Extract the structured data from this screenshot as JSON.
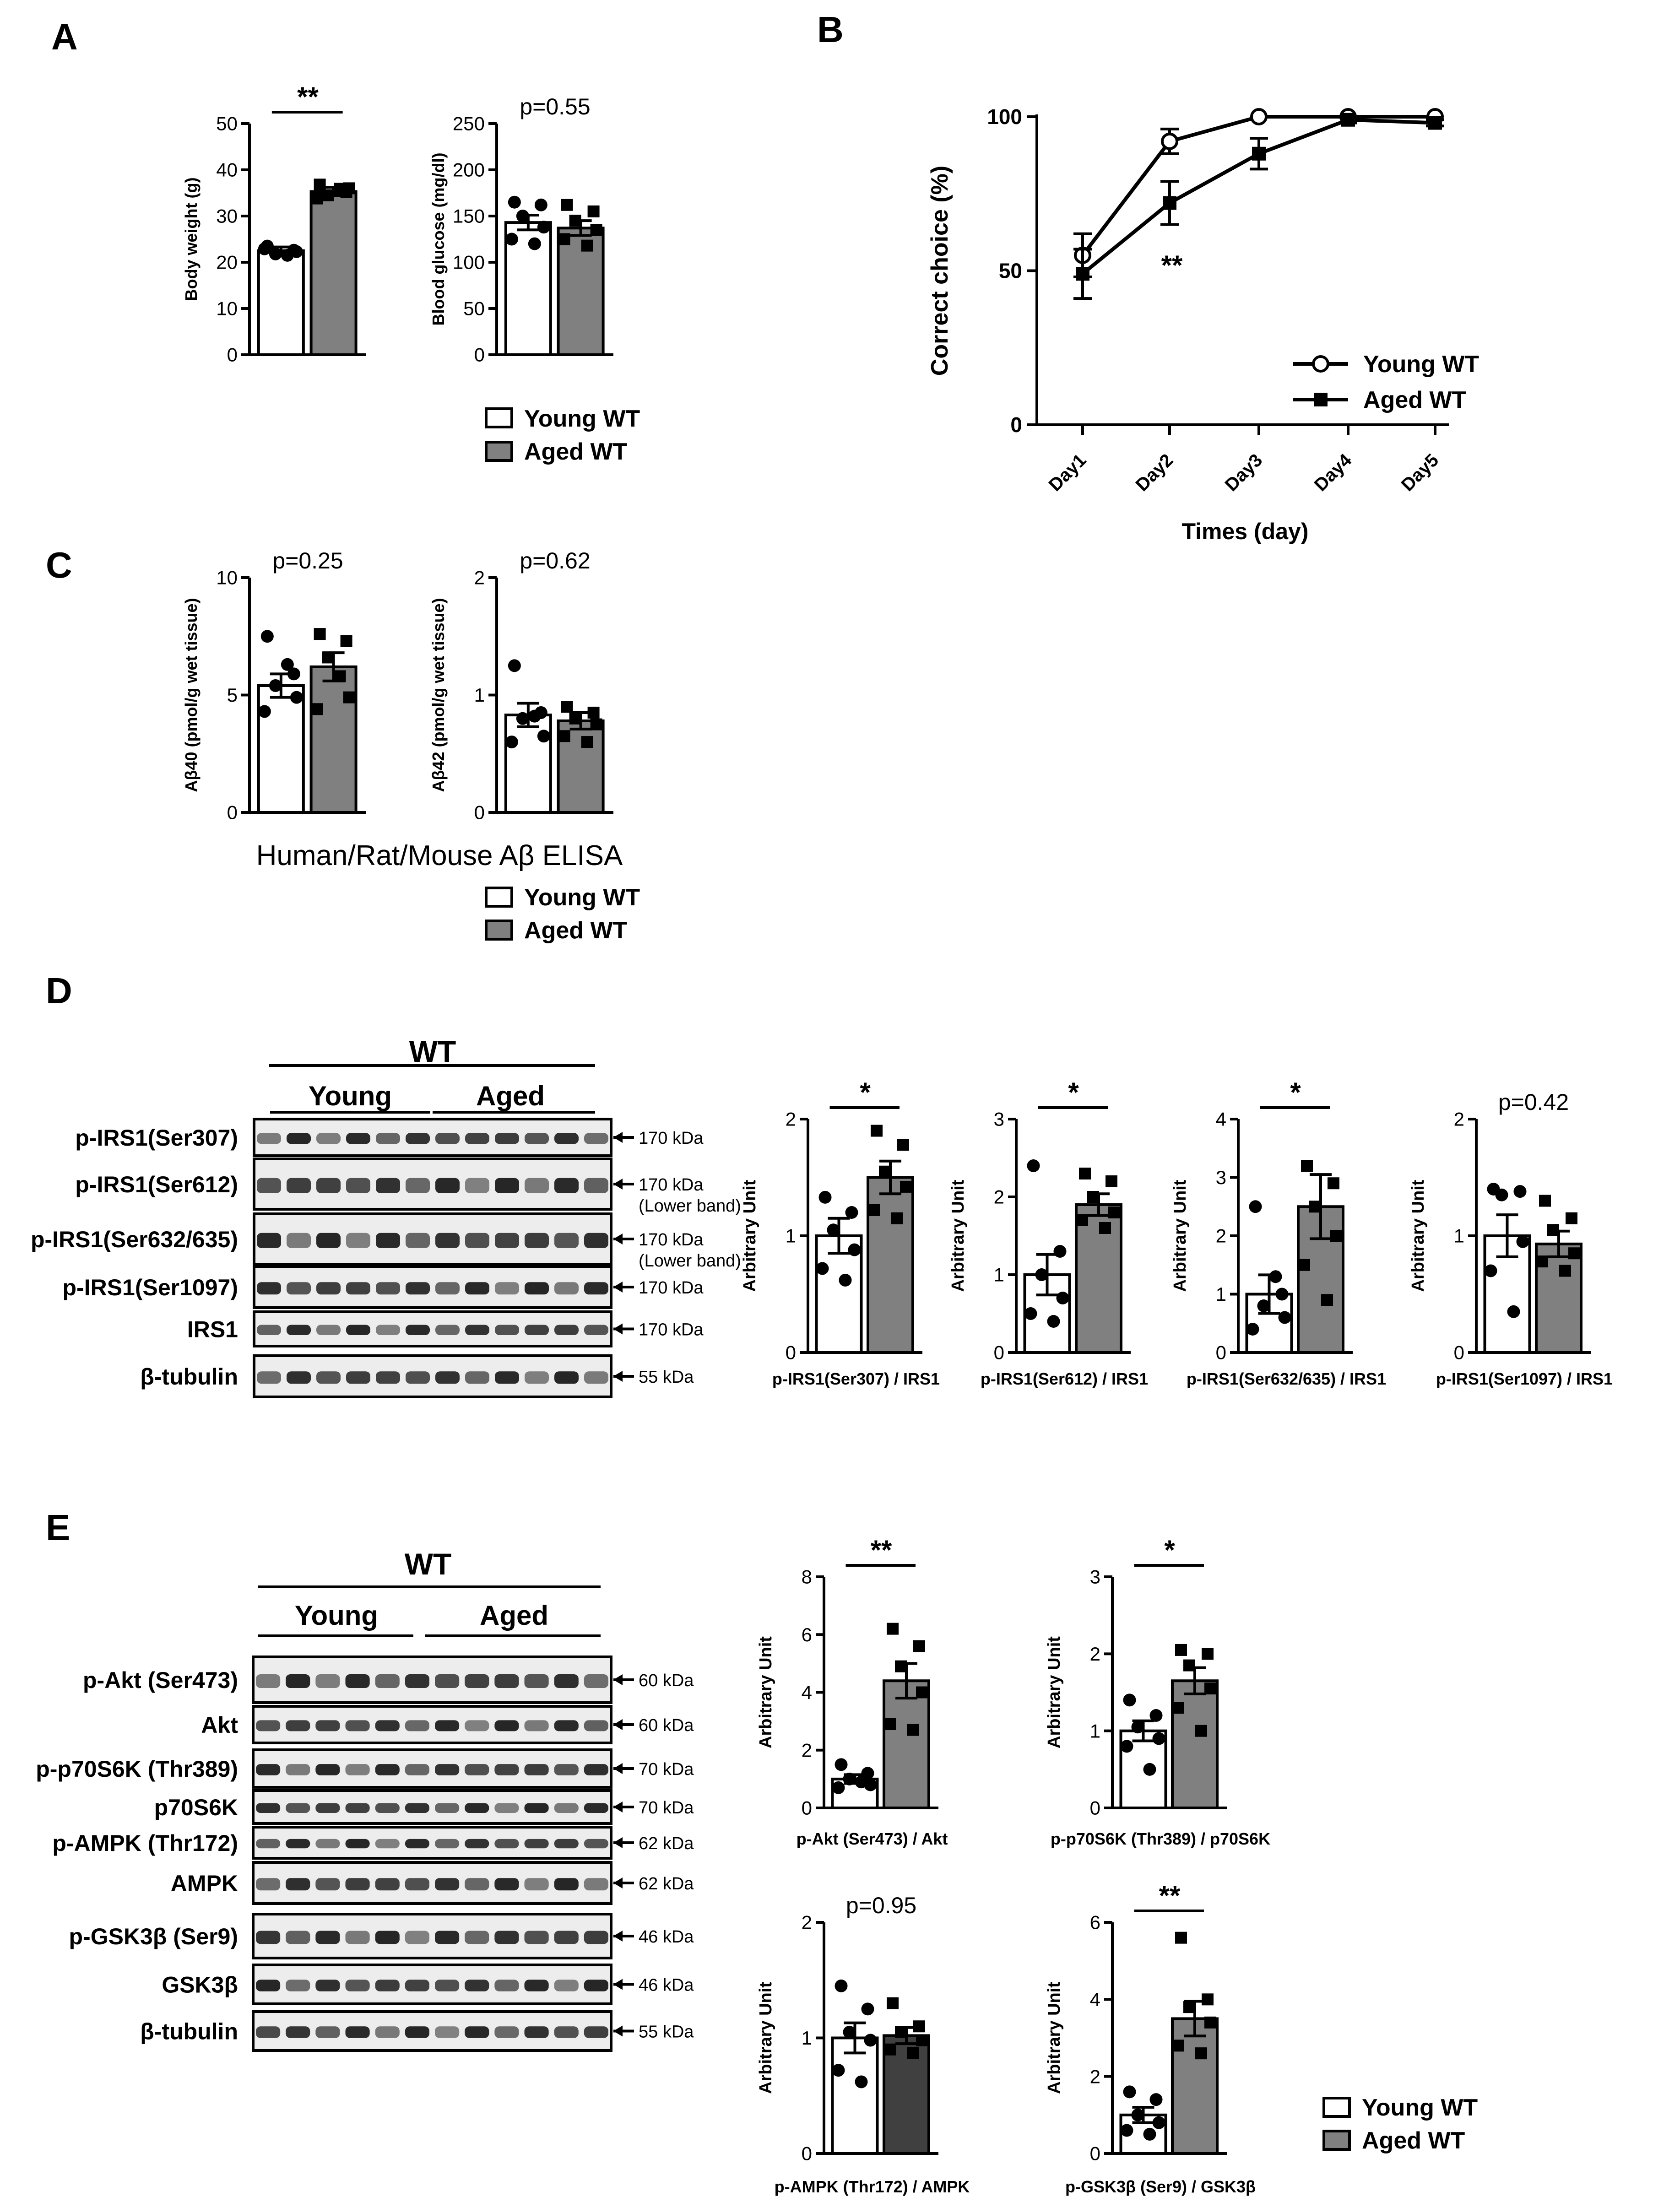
{
  "colors": {
    "young_fill": "#ffffff",
    "aged_fill": "#808080",
    "aged_fill_dark": "#404040",
    "ink": "#000000"
  },
  "panels": {
    "a": "A",
    "b": "B",
    "c": "C",
    "d": "D",
    "e": "E"
  },
  "legend": {
    "young": "Young WT",
    "aged": "Aged WT"
  },
  "elisa_caption": "Human/Rat/Mouse Aβ ELISA",
  "blot": {
    "wt": "WT",
    "young": "Young",
    "aged": "Aged",
    "d_rows": [
      {
        "label": "p-IRS1(Ser307)",
        "kda": "170 kDa",
        "note": ""
      },
      {
        "label": "p-IRS1(Ser612)",
        "kda": "170 kDa",
        "note": "(Lower band)"
      },
      {
        "label": "p-IRS1(Ser632/635)",
        "kda": "170 kDa",
        "note": "(Lower band)"
      },
      {
        "label": "p-IRS1(Ser1097)",
        "kda": "170 kDa",
        "note": ""
      },
      {
        "label": "IRS1",
        "kda": "170 kDa",
        "note": ""
      },
      {
        "label": "β-tubulin",
        "kda": "55 kDa",
        "note": ""
      }
    ],
    "e_rows": [
      {
        "label": "p-Akt (Ser473)",
        "kda": "60 kDa"
      },
      {
        "label": "Akt",
        "kda": "60 kDa"
      },
      {
        "label": "p-p70S6K (Thr389)",
        "kda": "70 kDa"
      },
      {
        "label": "p70S6K",
        "kda": "70 kDa"
      },
      {
        "label": "p-AMPK (Thr172)",
        "kda": "62 kDa"
      },
      {
        "label": "AMPK",
        "kda": "62 kDa"
      },
      {
        "label": "p-GSK3β (Ser9)",
        "kda": "46 kDa"
      },
      {
        "label": "GSK3β",
        "kda": "46 kDa"
      },
      {
        "label": "β-tubulin",
        "kda": "55 kDa"
      }
    ]
  },
  "chart_data": [
    {
      "id": "a1",
      "type": "bar",
      "ylabel": "Body weight (g)",
      "ylim": [
        0,
        50
      ],
      "yticks": [
        "0",
        "10",
        "20",
        "30",
        "40",
        "50"
      ],
      "categories": [
        "Young WT",
        "Aged WT"
      ],
      "values": [
        22.5,
        35.3
      ],
      "errors": [
        0.8,
        0.9
      ],
      "significance": "**",
      "xlabel": "",
      "points": [
        [
          23.5,
          22.6,
          21.8,
          22.3,
          22.9,
          21.5
        ],
        [
          36.8,
          35.2,
          34.5,
          36.0,
          33.8,
          35.9
        ]
      ]
    },
    {
      "id": "a2",
      "type": "bar",
      "ylabel": "Blood glucose (mg/dl)",
      "ylim": [
        0,
        250
      ],
      "yticks": [
        "0",
        "50",
        "100",
        "150",
        "200",
        "250"
      ],
      "categories": [
        "Young WT",
        "Aged WT"
      ],
      "values": [
        143,
        137
      ],
      "errors": [
        8,
        8
      ],
      "significance": "p=0.55",
      "xlabel": "",
      "points": [
        [
          165,
          162,
          150,
          138,
          125,
          120
        ],
        [
          162,
          155,
          145,
          135,
          125,
          118
        ]
      ]
    },
    {
      "id": "b",
      "type": "line",
      "ylabel": "Correct choice (%)",
      "xlabel": "Times (day)",
      "ylim": [
        0,
        100
      ],
      "yticks": [
        "0",
        "50",
        "100"
      ],
      "categories": [
        "Day1",
        "Day2",
        "Day3",
        "Day4",
        "Day5"
      ],
      "significance": "**",
      "series": [
        {
          "name": "Young WT",
          "values": [
            55,
            92,
            100,
            100,
            100
          ],
          "errors": [
            7,
            4,
            0,
            0,
            0
          ],
          "marker": "circle-open"
        },
        {
          "name": "Aged WT",
          "values": [
            49,
            72,
            88,
            99,
            98
          ],
          "errors": [
            8,
            7,
            5,
            1,
            1
          ],
          "marker": "square-filled"
        }
      ]
    },
    {
      "id": "c1",
      "type": "bar",
      "ylabel": "Aβ40 (pmol/g wet tissue)",
      "ylim": [
        0,
        10
      ],
      "yticks": [
        "0",
        "5",
        "10"
      ],
      "categories": [
        "Young WT",
        "Aged WT"
      ],
      "values": [
        5.4,
        6.2
      ],
      "errors": [
        0.5,
        0.6
      ],
      "significance": "p=0.25",
      "xlabel": "",
      "points": [
        [
          7.5,
          5.9,
          5.4,
          4.9,
          4.3,
          6.3
        ],
        [
          7.6,
          7.3,
          6.6,
          4.9,
          4.4,
          5.8
        ]
      ]
    },
    {
      "id": "c2",
      "type": "bar",
      "ylabel": "Aβ42 (pmol/g wet tissue)",
      "ylim": [
        0,
        2
      ],
      "yticks": [
        "0",
        "1",
        "2"
      ],
      "categories": [
        "Young WT",
        "Aged WT"
      ],
      "values": [
        0.83,
        0.78
      ],
      "errors": [
        0.1,
        0.07
      ],
      "significance": "p=0.62",
      "xlabel": "",
      "points": [
        [
          1.25,
          0.85,
          0.8,
          0.65,
          0.6,
          0.82
        ],
        [
          0.9,
          0.85,
          0.8,
          0.75,
          0.65,
          0.6
        ]
      ]
    },
    {
      "id": "d1",
      "type": "bar",
      "ylabel": "Arbitrary Unit",
      "xlabel": "p-IRS1(Ser307) / IRS1",
      "ylim": [
        0,
        2
      ],
      "yticks": [
        "0",
        "1",
        "2"
      ],
      "categories": [
        "Young WT",
        "Aged WT"
      ],
      "values": [
        1.0,
        1.5
      ],
      "errors": [
        0.15,
        0.14
      ],
      "significance": "*",
      "points": [
        [
          1.33,
          1.2,
          1.05,
          0.88,
          0.72,
          0.62
        ],
        [
          1.9,
          1.78,
          1.55,
          1.42,
          1.22,
          1.15
        ]
      ]
    },
    {
      "id": "d2",
      "type": "bar",
      "ylabel": "Arbitrary Unit",
      "xlabel": "p-IRS1(Ser612) / IRS1",
      "ylim": [
        0,
        3
      ],
      "yticks": [
        "0",
        "1",
        "2",
        "3"
      ],
      "categories": [
        "Young WT",
        "Aged WT"
      ],
      "values": [
        1.0,
        1.9
      ],
      "errors": [
        0.26,
        0.14
      ],
      "significance": "*",
      "points": [
        [
          2.4,
          1.3,
          1.0,
          0.7,
          0.5,
          0.4
        ],
        [
          2.3,
          2.2,
          2.0,
          1.8,
          1.7,
          1.6
        ]
      ]
    },
    {
      "id": "d3",
      "type": "bar",
      "ylabel": "Arbitrary Unit",
      "xlabel": "p-IRS1(Ser632/635) / IRS1",
      "ylim": [
        0,
        4
      ],
      "yticks": [
        "0",
        "1",
        "2",
        "3",
        "4"
      ],
      "categories": [
        "Young WT",
        "Aged WT"
      ],
      "values": [
        1.0,
        2.5
      ],
      "errors": [
        0.33,
        0.55
      ],
      "significance": "*",
      "points": [
        [
          2.5,
          1.0,
          0.8,
          0.6,
          0.4,
          1.3
        ],
        [
          3.2,
          2.9,
          2.5,
          2.0,
          1.5,
          0.9
        ]
      ]
    },
    {
      "id": "d4",
      "type": "bar",
      "ylabel": "Arbitrary Unit",
      "xlabel": "p-IRS1(Ser1097) / IRS1",
      "ylim": [
        0,
        2
      ],
      "yticks": [
        "0",
        "1",
        "2"
      ],
      "categories": [
        "Young WT",
        "Aged WT"
      ],
      "values": [
        1.0,
        0.93
      ],
      "errors": [
        0.18,
        0.11
      ],
      "significance": "p=0.42",
      "points": [
        [
          1.4,
          1.38,
          1.35,
          0.95,
          0.7,
          0.35
        ],
        [
          1.3,
          1.15,
          1.05,
          0.85,
          0.78,
          0.7
        ]
      ]
    },
    {
      "id": "e1",
      "type": "bar",
      "ylabel": "Arbitrary Unit",
      "xlabel": "p-Akt (Ser473) / Akt",
      "ylim": [
        0,
        8
      ],
      "yticks": [
        "0",
        "2",
        "4",
        "6",
        "8"
      ],
      "categories": [
        "Young WT",
        "Aged WT"
      ],
      "values": [
        1.0,
        4.4
      ],
      "errors": [
        0.15,
        0.6
      ],
      "significance": "**",
      "points": [
        [
          1.5,
          1.2,
          1.0,
          0.8,
          0.7,
          0.9
        ],
        [
          6.2,
          5.6,
          4.9,
          4.0,
          2.9,
          2.7
        ]
      ]
    },
    {
      "id": "e2",
      "type": "bar",
      "ylabel": "Arbitrary Unit",
      "xlabel": "p-p70S6K (Thr389) / p70S6K",
      "ylim": [
        0,
        3
      ],
      "yticks": [
        "0",
        "1",
        "2",
        "3"
      ],
      "categories": [
        "Young WT",
        "Aged WT"
      ],
      "values": [
        1.0,
        1.65
      ],
      "errors": [
        0.13,
        0.17
      ],
      "significance": "*",
      "points": [
        [
          1.4,
          1.2,
          1.05,
          0.9,
          0.8,
          0.5
        ],
        [
          2.05,
          2.0,
          1.85,
          1.55,
          1.3,
          1.0
        ]
      ]
    },
    {
      "id": "e3",
      "type": "bar",
      "ylabel": "Arbitrary Unit",
      "xlabel": "p-AMPK (Thr172) / AMPK",
      "ylim": [
        0,
        2
      ],
      "yticks": [
        "0",
        "1",
        "2"
      ],
      "categories": [
        "Young WT",
        "Aged WT"
      ],
      "values": [
        1.0,
        1.02
      ],
      "errors": [
        0.13,
        0.07
      ],
      "significance": "p=0.95",
      "dark_aged": true,
      "points": [
        [
          1.45,
          1.25,
          1.05,
          0.98,
          0.72,
          0.62
        ],
        [
          1.3,
          1.1,
          1.05,
          0.98,
          0.9,
          0.87
        ]
      ]
    },
    {
      "id": "e4",
      "type": "bar",
      "ylabel": "Arbitrary Unit",
      "xlabel": "p-GSK3β (Ser9) / GSK3β",
      "ylim": [
        0,
        6
      ],
      "yticks": [
        "0",
        "2",
        "4",
        "6"
      ],
      "categories": [
        "Young WT",
        "Aged WT"
      ],
      "values": [
        1.0,
        3.5
      ],
      "errors": [
        0.2,
        0.45
      ],
      "significance": "**",
      "points": [
        [
          1.6,
          1.4,
          1.0,
          0.8,
          0.6,
          0.5
        ],
        [
          5.6,
          4.0,
          3.8,
          3.4,
          2.8,
          2.6
        ]
      ]
    }
  ]
}
